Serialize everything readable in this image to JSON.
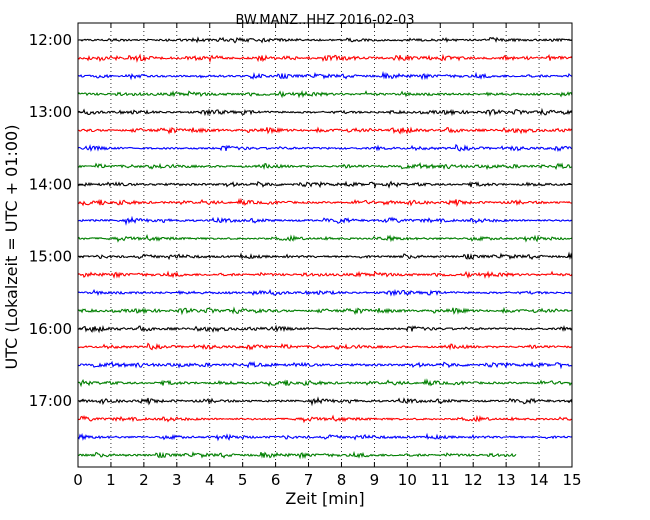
{
  "chart_data": {
    "type": "line",
    "title": "BW.MANZ..HHZ 2016-02-03",
    "xlabel": "Zeit  [min]",
    "ylabel": "UTC (Lokalzeit = UTC + 01:00)",
    "xlim": [
      0,
      15
    ],
    "x_ticks": [
      "0",
      "1",
      "2",
      "3",
      "4",
      "5",
      "6",
      "7",
      "8",
      "9",
      "10",
      "11",
      "12",
      "13",
      "14",
      "15"
    ],
    "y_tick_labels": [
      "12:00",
      "13:00",
      "14:00",
      "15:00",
      "16:00",
      "17:00"
    ],
    "grid": "vertical dotted",
    "series_colors": [
      "#000000",
      "#ff0000",
      "#0000ff",
      "#007f00"
    ],
    "traces": [
      {
        "start": "12:00",
        "end_minute": 15
      },
      {
        "start": "12:15",
        "end_minute": 15
      },
      {
        "start": "12:30",
        "end_minute": 15
      },
      {
        "start": "12:45",
        "end_minute": 15
      },
      {
        "start": "13:00",
        "end_minute": 15
      },
      {
        "start": "13:15",
        "end_minute": 15
      },
      {
        "start": "13:30",
        "end_minute": 15
      },
      {
        "start": "13:45",
        "end_minute": 15
      },
      {
        "start": "14:00",
        "end_minute": 15
      },
      {
        "start": "14:15",
        "end_minute": 15
      },
      {
        "start": "14:30",
        "end_minute": 15
      },
      {
        "start": "14:45",
        "end_minute": 15
      },
      {
        "start": "15:00",
        "end_minute": 15
      },
      {
        "start": "15:15",
        "end_minute": 15
      },
      {
        "start": "15:30",
        "end_minute": 15
      },
      {
        "start": "15:45",
        "end_minute": 15
      },
      {
        "start": "16:00",
        "end_minute": 15
      },
      {
        "start": "16:15",
        "end_minute": 15
      },
      {
        "start": "16:30",
        "end_minute": 15
      },
      {
        "start": "16:45",
        "end_minute": 15
      },
      {
        "start": "17:00",
        "end_minute": 15
      },
      {
        "start": "17:15",
        "end_minute": 15
      },
      {
        "start": "17:30",
        "end_minute": 15
      },
      {
        "start": "17:45",
        "end_minute": 13.3
      }
    ]
  }
}
